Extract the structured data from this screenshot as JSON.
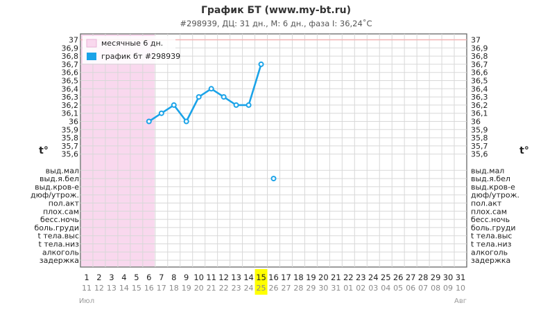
{
  "chart_data": {
    "type": "line",
    "title": "График БТ (www.my-bt.ru)",
    "subtitle": "#298939, ДЦ: 31 дн., М: 6 дн., фаза I: 36,24˚C",
    "y_axis_title": "t°",
    "ylim": [
      35.6,
      37
    ],
    "y_ticks": [
      "37",
      "36,9",
      "36,8",
      "36,7",
      "36,6",
      "36,5",
      "36,4",
      "36,3",
      "36,2",
      "36,1",
      "36",
      "35,9",
      "35,8",
      "35,7",
      "35,6"
    ],
    "symptom_rows": [
      "выд.мал",
      "выд.я.бел",
      "выд.кров-е",
      "дюф/утрож.",
      "пол.акт",
      "плох.сам",
      "бесс.ночь",
      "боль.груди",
      "t тела.выс",
      "t тела.низ",
      "алкоголь",
      "задержка"
    ],
    "cycle_days": [
      "1",
      "2",
      "3",
      "4",
      "5",
      "6",
      "7",
      "8",
      "9",
      "10",
      "11",
      "12",
      "13",
      "14",
      "15",
      "16",
      "17",
      "18",
      "19",
      "20",
      "21",
      "22",
      "23",
      "24",
      "25",
      "26",
      "27",
      "28",
      "29",
      "30",
      "31"
    ],
    "dates": [
      "11",
      "12",
      "13",
      "14",
      "15",
      "16",
      "17",
      "18",
      "19",
      "20",
      "21",
      "22",
      "23",
      "24",
      "25",
      "26",
      "27",
      "28",
      "29",
      "30",
      "31",
      "01",
      "02",
      "03",
      "04",
      "05",
      "06",
      "07",
      "08",
      "09",
      "10"
    ],
    "highlighted_day": 15,
    "months": [
      {
        "label": "Июл",
        "at_day": 1
      },
      {
        "label": "Авг",
        "at_day": 31
      }
    ],
    "series": [
      {
        "name": "график бт #298939",
        "color": "#1aa3e8",
        "x": [
          6,
          7,
          8,
          9,
          10,
          11,
          12,
          13,
          14,
          15
        ],
        "y": [
          36.0,
          36.1,
          36.2,
          36.0,
          36.3,
          36.4,
          36.3,
          36.2,
          36.2,
          36.7
        ]
      }
    ],
    "symptom_marks": [
      {
        "day": 16,
        "row": "выд.я.бел"
      }
    ],
    "menstruation": {
      "label": "месячные 6 дн.",
      "from_day": 1,
      "to_day": 6,
      "color": "#f9d8ee"
    },
    "reference_line": {
      "value": 37,
      "color": "#f2b3b3"
    },
    "legend": {
      "position": "top-left"
    },
    "grid": true
  }
}
